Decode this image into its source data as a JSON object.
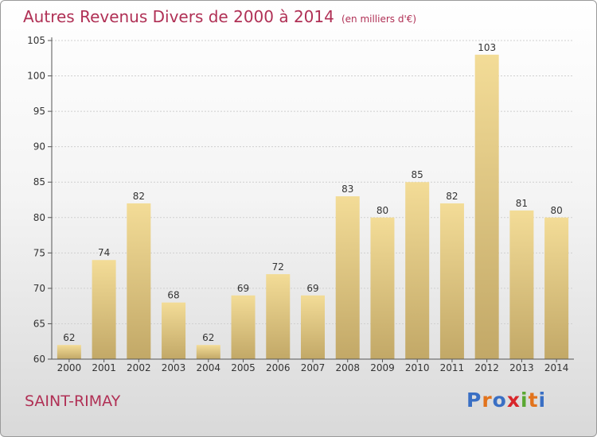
{
  "title": "Autres Revenus Divers de 2000 à 2014",
  "subtitle": "(en milliers d'€)",
  "commune": "SAINT-RIMAY",
  "logo": {
    "letters": [
      "P",
      "r",
      "o",
      "x",
      "i",
      "t",
      "i"
    ],
    "colors": [
      "#3a6fc4",
      "#e2731c",
      "#3a6fc4",
      "#d8262b",
      "#5aa832",
      "#e2731c",
      "#3a6fc4"
    ]
  },
  "colors": {
    "bar_top": "#f3dc97",
    "bar_bottom": "#c2a867",
    "title": "#b03055",
    "grid": "#cfcfcf"
  },
  "chart_data": {
    "type": "bar",
    "title": "Autres Revenus Divers de 2000 à 2014",
    "subtitle": "(en milliers d'€)",
    "categories": [
      "2000",
      "2001",
      "2002",
      "2003",
      "2004",
      "2005",
      "2006",
      "2007",
      "2008",
      "2009",
      "2010",
      "2011",
      "2012",
      "2013",
      "2014"
    ],
    "values": [
      62,
      74,
      82,
      68,
      62,
      69,
      72,
      69,
      83,
      80,
      85,
      82,
      103,
      81,
      80
    ],
    "ylim": [
      60,
      105
    ],
    "yticks": [
      60,
      65,
      70,
      75,
      80,
      85,
      90,
      95,
      100,
      105
    ],
    "grid": true,
    "xlabel": "",
    "ylabel": ""
  }
}
